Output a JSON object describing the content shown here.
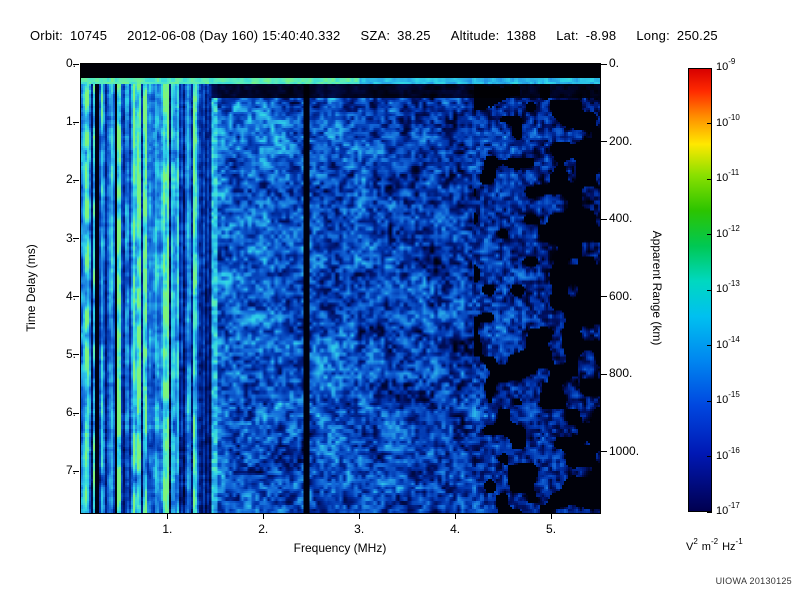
{
  "header": {
    "orbit_label": "Orbit:",
    "orbit_value": "10745",
    "datetime": "2012-06-08 (Day 160) 15:40:40.332",
    "sza_label": "SZA:",
    "sza_value": "38.25",
    "altitude_label": "Altitude:",
    "altitude_value": "1388",
    "lat_label": "Lat:",
    "lat_value": "-8.98",
    "long_label": "Long:",
    "long_value": "250.25"
  },
  "chart_data": {
    "type": "heatmap",
    "title": "",
    "x_axis": {
      "label": "Frequency (MHz)",
      "range": [
        0.1,
        5.5
      ],
      "ticks": [
        {
          "value": 1,
          "label": "1."
        },
        {
          "value": 2,
          "label": "2."
        },
        {
          "value": 3,
          "label": "3."
        },
        {
          "value": 4,
          "label": "4."
        },
        {
          "value": 5,
          "label": "5."
        }
      ]
    },
    "y_axis_left": {
      "label": "Time Delay (ms)",
      "range": [
        0,
        7.7
      ],
      "ticks": [
        {
          "value": 0,
          "label": "0."
        },
        {
          "value": 1,
          "label": "1."
        },
        {
          "value": 2,
          "label": "2."
        },
        {
          "value": 3,
          "label": "3."
        },
        {
          "value": 4,
          "label": "4."
        },
        {
          "value": 5,
          "label": "5."
        },
        {
          "value": 6,
          "label": "6."
        },
        {
          "value": 7,
          "label": "7."
        }
      ]
    },
    "y_axis_right": {
      "label": "Apparent Range (km)",
      "range": [
        0,
        1155
      ],
      "ticks": [
        {
          "value": 0,
          "label": "0."
        },
        {
          "value": 200,
          "label": "200."
        },
        {
          "value": 400,
          "label": "400."
        },
        {
          "value": 600,
          "label": "600."
        },
        {
          "value": 800,
          "label": "800."
        },
        {
          "value": 1000,
          "label": "1000."
        }
      ]
    },
    "colorbar": {
      "ticks": [
        {
          "base": "10",
          "exp": "-9"
        },
        {
          "base": "10",
          "exp": "-10"
        },
        {
          "base": "10",
          "exp": "-11"
        },
        {
          "base": "10",
          "exp": "-12"
        },
        {
          "base": "10",
          "exp": "-13"
        },
        {
          "base": "10",
          "exp": "-14"
        },
        {
          "base": "10",
          "exp": "-15"
        },
        {
          "base": "10",
          "exp": "-16"
        },
        {
          "base": "10",
          "exp": "-17"
        }
      ],
      "unit_parts": {
        "v": "V",
        "v_exp": "2",
        "m": "m",
        "m_exp": "-2",
        "hz": "Hz",
        "hz_exp": "-1"
      },
      "gradient": [
        {
          "pos": 0.0,
          "color": "#d80000"
        },
        {
          "pos": 0.05,
          "color": "#ff2a00"
        },
        {
          "pos": 0.11,
          "color": "#ff9100"
        },
        {
          "pos": 0.17,
          "color": "#ffe800"
        },
        {
          "pos": 0.24,
          "color": "#8ae000"
        },
        {
          "pos": 0.32,
          "color": "#2cc400"
        },
        {
          "pos": 0.4,
          "color": "#00c853"
        },
        {
          "pos": 0.48,
          "color": "#00d8c0"
        },
        {
          "pos": 0.56,
          "color": "#00c0f0"
        },
        {
          "pos": 0.66,
          "color": "#0086f0"
        },
        {
          "pos": 0.76,
          "color": "#0048e0"
        },
        {
          "pos": 0.87,
          "color": "#0018b4"
        },
        {
          "pos": 1.0,
          "color": "#000050"
        }
      ]
    },
    "colormap": [
      [
        0.0,
        "#000002"
      ],
      [
        0.1,
        "#000428"
      ],
      [
        0.22,
        "#001268"
      ],
      [
        0.36,
        "#0034ac"
      ],
      [
        0.52,
        "#1266d8"
      ],
      [
        0.66,
        "#26a0e6"
      ],
      [
        0.78,
        "#2ed2e8"
      ],
      [
        0.9,
        "#55ecc0"
      ],
      [
        1.0,
        "#7cf47c"
      ]
    ],
    "noise_seed": 42,
    "features": [
      {
        "name": "zero-delay-black-band",
        "delay_ms": [
          0,
          0.22
        ],
        "desc": "solid black band across all frequencies at the top of the plot"
      },
      {
        "name": "bright-horizontal-line",
        "delay_ms": 0.28,
        "desc": "thin bright green-cyan horizontal line across all frequencies, dimmer above 3 MHz"
      },
      {
        "name": "dark-gap-below-line",
        "delay_ms": [
          0.34,
          0.58
        ],
        "freq_mhz": [
          1.5,
          5.5
        ],
        "desc": "dark band just below the bright line on the high-frequency side"
      },
      {
        "name": "plasma-line-striping",
        "freq_mhz": [
          0.1,
          1.45
        ],
        "desc": "dense bright cyan/green vertical striping over full delay range at low frequencies"
      },
      {
        "name": "dark-columns",
        "freq_mhz": [
          0.26,
          0.46
        ],
        "desc": "narrow black vertical gaps within the low-frequency striping"
      },
      {
        "name": "bright-column",
        "freq_mhz": 1.48,
        "desc": "bright cyan vertical stripe spanning full delay range"
      },
      {
        "name": "black-column",
        "freq_mhz": 2.44,
        "desc": "narrow black vertical line spanning full delay range"
      },
      {
        "name": "diffuse-blue-noise",
        "freq_mhz": [
          1.5,
          4.2
        ],
        "desc": "mottled medium-blue noise field with scattered cyan patches"
      },
      {
        "name": "high-frequency-fadeout",
        "freq_mhz": [
          4.2,
          5.5
        ],
        "desc": "signal weakens, dark blue with growing black patches toward 5.5 MHz"
      }
    ]
  },
  "footer": {
    "credit": "UIOWA 20130125"
  }
}
